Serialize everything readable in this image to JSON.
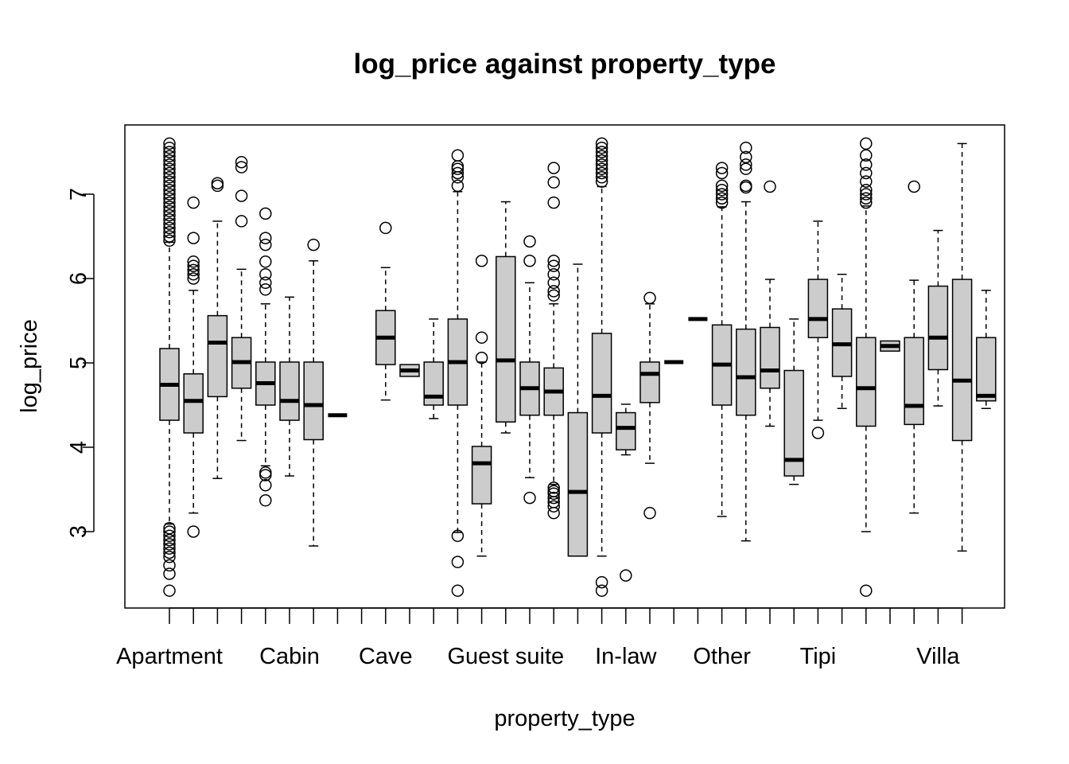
{
  "chart_data": {
    "type": "boxplot",
    "title": "log_price against property_type",
    "xlabel": "property_type",
    "ylabel": "log_price",
    "ylim": [
      2.2,
      7.9
    ],
    "y_ticks": [
      3,
      4,
      5,
      6,
      7
    ],
    "x_tick_labels": [
      {
        "index": 0,
        "label": "Apartment"
      },
      {
        "index": 5,
        "label": "Cabin"
      },
      {
        "index": 9,
        "label": "Cave"
      },
      {
        "index": 14,
        "label": "Guest suite"
      },
      {
        "index": 19,
        "label": "In-law"
      },
      {
        "index": 23,
        "label": "Other"
      },
      {
        "index": 27,
        "label": "Tipi"
      },
      {
        "index": 32,
        "label": "Villa"
      }
    ],
    "n_categories": 34,
    "boxes": [
      {
        "index": 0,
        "q1": 4.32,
        "median": 4.74,
        "q3": 5.17,
        "lo": 3.09,
        "hi": 6.43,
        "outliers": [
          7.6,
          7.55,
          7.5,
          7.45,
          7.4,
          7.35,
          7.3,
          7.25,
          7.2,
          7.15,
          7.1,
          7.05,
          7.0,
          6.95,
          6.9,
          6.85,
          6.8,
          6.75,
          6.7,
          6.65,
          6.6,
          6.55,
          6.5,
          6.45,
          3.04,
          3.0,
          2.95,
          2.9,
          2.85,
          2.8,
          2.75,
          2.7,
          2.6,
          2.5,
          2.3
        ]
      },
      {
        "index": 1,
        "q1": 4.17,
        "median": 4.55,
        "q3": 4.87,
        "lo": 3.22,
        "hi": 5.86,
        "outliers": [
          6.9,
          6.48,
          6.2,
          6.15,
          6.1,
          6.05,
          6.0,
          3.0
        ]
      },
      {
        "index": 2,
        "q1": 4.6,
        "median": 5.24,
        "q3": 5.56,
        "lo": 3.63,
        "hi": 6.68,
        "outliers": [
          7.13,
          7.1
        ]
      },
      {
        "index": 3,
        "q1": 4.7,
        "median": 5.01,
        "q3": 5.3,
        "lo": 4.08,
        "hi": 6.11,
        "outliers": [
          7.38,
          7.32,
          6.98,
          6.68
        ]
      },
      {
        "index": 4,
        "q1": 4.5,
        "median": 4.76,
        "q3": 5.01,
        "lo": 3.78,
        "hi": 5.7,
        "outliers": [
          6.77,
          6.48,
          6.4,
          6.2,
          6.05,
          5.95,
          5.87,
          3.7,
          3.67,
          3.55,
          3.37
        ]
      },
      {
        "index": 5,
        "q1": 4.32,
        "median": 4.55,
        "q3": 5.01,
        "lo": 3.66,
        "hi": 5.78,
        "outliers": []
      },
      {
        "index": 6,
        "q1": 4.09,
        "median": 4.5,
        "q3": 5.01,
        "lo": 2.83,
        "hi": 6.21,
        "outliers": [
          6.4
        ]
      },
      {
        "index": 7,
        "q1": 4.38,
        "median": 4.38,
        "q3": 4.38,
        "lo": 4.38,
        "hi": 4.38,
        "outliers": []
      },
      {
        "index": 8,
        "q1": null,
        "median": null,
        "q3": null,
        "lo": null,
        "hi": null,
        "outliers": []
      },
      {
        "index": 9,
        "q1": 4.98,
        "median": 5.3,
        "q3": 5.62,
        "lo": 4.56,
        "hi": 6.13,
        "outliers": [
          6.6
        ]
      },
      {
        "index": 10,
        "q1": 4.84,
        "median": 4.91,
        "q3": 4.98,
        "lo": 4.84,
        "hi": 4.98,
        "outliers": []
      },
      {
        "index": 11,
        "q1": 4.5,
        "median": 4.6,
        "q3": 5.01,
        "lo": 4.34,
        "hi": 5.52,
        "outliers": []
      },
      {
        "index": 12,
        "q1": 4.5,
        "median": 5.01,
        "q3": 5.52,
        "lo": 2.99,
        "hi": 7.03,
        "outliers": [
          7.46,
          7.33,
          7.3,
          7.25,
          7.2,
          7.1,
          2.95,
          2.64,
          2.3
        ]
      },
      {
        "index": 13,
        "q1": 3.33,
        "median": 3.81,
        "q3": 4.01,
        "lo": 2.71,
        "hi": 5.01,
        "outliers": [
          6.21,
          5.3,
          5.06
        ]
      },
      {
        "index": 14,
        "q1": 4.3,
        "median": 5.03,
        "q3": 6.26,
        "lo": 4.17,
        "hi": 6.91,
        "outliers": []
      },
      {
        "index": 15,
        "q1": 4.38,
        "median": 4.7,
        "q3": 5.01,
        "lo": 3.64,
        "hi": 5.95,
        "outliers": [
          6.44,
          6.21,
          3.4
        ]
      },
      {
        "index": 16,
        "q1": 4.38,
        "median": 4.66,
        "q3": 4.94,
        "lo": 3.56,
        "hi": 5.7,
        "outliers": [
          7.31,
          7.14,
          6.9,
          6.21,
          6.15,
          6.05,
          5.95,
          5.85,
          5.8,
          3.52,
          3.48,
          3.45,
          3.4,
          3.35,
          3.3,
          3.22
        ]
      },
      {
        "index": 17,
        "q1": 2.71,
        "median": 3.47,
        "q3": 4.41,
        "lo": 2.71,
        "hi": 6.17,
        "outliers": []
      },
      {
        "index": 18,
        "q1": 4.17,
        "median": 4.61,
        "q3": 5.35,
        "lo": 2.71,
        "hi": 7.09,
        "outliers": [
          7.6,
          7.55,
          7.5,
          7.45,
          7.4,
          7.35,
          7.3,
          7.25,
          7.2,
          7.15,
          2.4,
          2.3
        ]
      },
      {
        "index": 19,
        "q1": 3.97,
        "median": 4.23,
        "q3": 4.41,
        "lo": 3.91,
        "hi": 4.51,
        "outliers": [
          2.48
        ]
      },
      {
        "index": 20,
        "q1": 4.53,
        "median": 4.87,
        "q3": 5.01,
        "lo": 3.81,
        "hi": 5.7,
        "outliers": [
          5.77,
          3.22
        ]
      },
      {
        "index": 21,
        "q1": 5.01,
        "median": 5.01,
        "q3": 5.01,
        "lo": 5.01,
        "hi": 5.01,
        "outliers": []
      },
      {
        "index": 22,
        "q1": 5.52,
        "median": 5.52,
        "q3": 5.52,
        "lo": 5.52,
        "hi": 5.52,
        "outliers": []
      },
      {
        "index": 23,
        "q1": 4.5,
        "median": 4.98,
        "q3": 5.45,
        "lo": 3.18,
        "hi": 6.85,
        "outliers": [
          7.31,
          7.25,
          7.1,
          7.05,
          7.0,
          6.95,
          6.9
        ]
      },
      {
        "index": 24,
        "q1": 4.38,
        "median": 4.83,
        "q3": 5.4,
        "lo": 2.89,
        "hi": 6.91,
        "outliers": [
          7.55,
          7.44,
          7.35,
          7.3,
          7.1,
          7.08
        ]
      },
      {
        "index": 25,
        "q1": 4.7,
        "median": 4.91,
        "q3": 5.42,
        "lo": 4.25,
        "hi": 5.99,
        "outliers": [
          7.09
        ]
      },
      {
        "index": 26,
        "q1": 3.66,
        "median": 3.85,
        "q3": 4.91,
        "lo": 3.56,
        "hi": 5.52,
        "outliers": []
      },
      {
        "index": 27,
        "q1": 5.3,
        "median": 5.52,
        "q3": 5.99,
        "lo": 4.32,
        "hi": 6.68,
        "outliers": [
          4.17
        ]
      },
      {
        "index": 28,
        "q1": 4.84,
        "median": 5.22,
        "q3": 5.64,
        "lo": 4.46,
        "hi": 6.05,
        "outliers": []
      },
      {
        "index": 29,
        "q1": 4.25,
        "median": 4.7,
        "q3": 5.3,
        "lo": 3.0,
        "hi": 6.86,
        "outliers": [
          7.6,
          7.46,
          7.35,
          7.25,
          7.15,
          7.05,
          7.0,
          6.95,
          6.9,
          2.3
        ]
      },
      {
        "index": 30,
        "q1": 5.14,
        "median": 5.2,
        "q3": 5.26,
        "lo": 5.14,
        "hi": 5.26,
        "outliers": []
      },
      {
        "index": 31,
        "q1": 4.27,
        "median": 4.49,
        "q3": 5.3,
        "lo": 3.22,
        "hi": 5.98,
        "outliers": [
          7.09
        ]
      },
      {
        "index": 32,
        "q1": 4.92,
        "median": 5.3,
        "q3": 5.91,
        "lo": 4.49,
        "hi": 6.57,
        "outliers": []
      },
      {
        "index": 33,
        "q1": 4.08,
        "median": 4.79,
        "q3": 5.99,
        "lo": 2.77,
        "hi": 7.6,
        "outliers": []
      },
      {
        "index": 34,
        "q1": 4.55,
        "median": 4.61,
        "q3": 5.3,
        "lo": 4.46,
        "hi": 5.86,
        "outliers": []
      }
    ]
  }
}
